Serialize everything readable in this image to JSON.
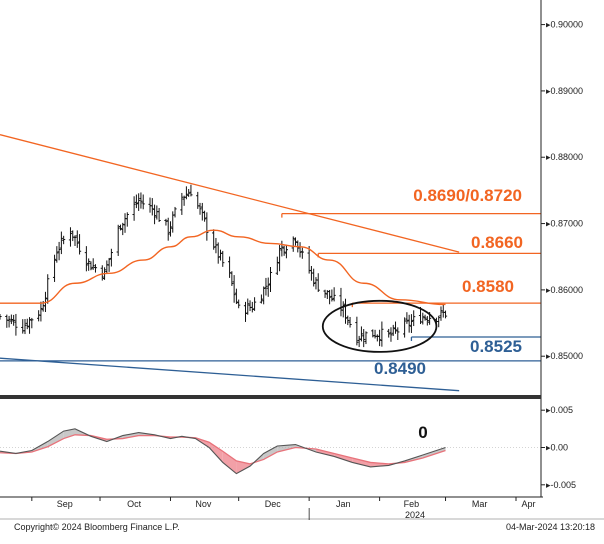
{
  "chart_data": [
    {
      "type": "ohlc",
      "panel": "price",
      "ylim": [
        0.844,
        0.9025
      ],
      "y_ticks": [
        "0.90000",
        "0.89000",
        "0.88000",
        "0.87000",
        "0.86000",
        "0.85000"
      ],
      "y_tick_values": [
        0.9,
        0.89,
        0.88,
        0.87,
        0.86,
        0.85
      ],
      "x_months": [
        "Sep",
        "Oct",
        "Nov",
        "Dec",
        "Jan",
        "Feb",
        "Mar",
        "Apr"
      ],
      "x_year_label": "2024",
      "close_keypoints": [
        [
          "2023-08-18",
          0.856
        ],
        [
          "2023-08-28",
          0.8545
        ],
        [
          "2023-09-05",
          0.857
        ],
        [
          "2023-09-12",
          0.866
        ],
        [
          "2023-09-18",
          0.869
        ],
        [
          "2023-09-26",
          0.864
        ],
        [
          "2023-10-03",
          0.8625
        ],
        [
          "2023-10-10",
          0.87
        ],
        [
          "2023-10-18",
          0.8735
        ],
        [
          "2023-10-25",
          0.872
        ],
        [
          "2023-10-31",
          0.869
        ],
        [
          "2023-11-06",
          0.874
        ],
        [
          "2023-11-10",
          0.875
        ],
        [
          "2023-11-15",
          0.871
        ],
        [
          "2023-11-21",
          0.866
        ],
        [
          "2023-11-27",
          0.862
        ],
        [
          "2023-12-01",
          0.857
        ],
        [
          "2023-12-07",
          0.8575
        ],
        [
          "2023-12-12",
          0.86
        ],
        [
          "2023-12-15",
          0.862
        ],
        [
          "2023-12-19",
          0.866
        ],
        [
          "2023-12-26",
          0.868
        ],
        [
          "2023-12-29",
          0.865
        ],
        [
          "2024-01-04",
          0.861
        ],
        [
          "2024-01-10",
          0.859
        ],
        [
          "2024-01-16",
          0.857
        ],
        [
          "2024-01-22",
          0.853
        ],
        [
          "2024-01-30",
          0.8535
        ],
        [
          "2024-02-05",
          0.853
        ],
        [
          "2024-02-12",
          0.8545
        ],
        [
          "2024-02-19",
          0.856
        ],
        [
          "2024-02-26",
          0.856
        ],
        [
          "2024-03-01",
          0.8565
        ]
      ],
      "moving_average": [
        [
          "2023-08-18",
          0.858
        ],
        [
          "2023-09-05",
          0.858
        ],
        [
          "2023-09-20",
          0.861
        ],
        [
          "2023-10-05",
          0.8625
        ],
        [
          "2023-10-20",
          0.8645
        ],
        [
          "2023-11-01",
          0.8665
        ],
        [
          "2023-11-10",
          0.868
        ],
        [
          "2023-11-20",
          0.869
        ],
        [
          "2023-12-01",
          0.868
        ],
        [
          "2023-12-15",
          0.867
        ],
        [
          "2023-12-28",
          0.8665
        ],
        [
          "2024-01-10",
          0.8645
        ],
        [
          "2024-01-25",
          0.861
        ],
        [
          "2024-02-10",
          0.8585
        ],
        [
          "2024-03-01",
          0.8578
        ]
      ],
      "level_lines": [
        {
          "label": "0.8690/0.8720",
          "value": 0.8715,
          "from": "2023-12-20",
          "color": "#f26522"
        },
        {
          "label": "0.8660",
          "value": 0.8655,
          "from": "2024-01-05",
          "color": "#f26522"
        },
        {
          "label": "0.8580",
          "value": 0.858,
          "from": "2024-01-20",
          "color": "#f26522"
        },
        {
          "label": "0.8525",
          "value": 0.8529,
          "from": "2024-02-15",
          "color": "#2e5f95"
        },
        {
          "label": "0.8490",
          "value": 0.8493,
          "from": "2023-08-18",
          "color": "#2e5f95"
        }
      ],
      "trendlines": [
        {
          "color": "#f26522",
          "points": [
            [
              "2023-08-18",
              0.8834
            ],
            [
              "2024-03-07",
              0.8657
            ]
          ]
        },
        {
          "color": "#2e5f95",
          "points": [
            [
              "2023-08-18",
              0.8497
            ],
            [
              "2024-03-07",
              0.8448
            ]
          ]
        }
      ],
      "ellipse": {
        "center": [
          "2024-02-01",
          0.8545
        ],
        "rx_days": 25,
        "ry": 0.00385
      }
    },
    {
      "type": "line",
      "panel": "oscillator",
      "ylim": [
        -0.0065,
        0.0065
      ],
      "y_ticks": [
        "0.005",
        "0.00",
        "-0.005"
      ],
      "y_tick_values": [
        0.005,
        0.0,
        -0.005
      ],
      "annotation": "0",
      "fast": [
        [
          "2023-08-18",
          -0.0005
        ],
        [
          "2023-08-25",
          -0.0008
        ],
        [
          "2023-09-01",
          -0.0004
        ],
        [
          "2023-09-08",
          0.0008
        ],
        [
          "2023-09-15",
          0.0022
        ],
        [
          "2023-09-20",
          0.0025
        ],
        [
          "2023-09-27",
          0.0015
        ],
        [
          "2023-10-04",
          0.0008
        ],
        [
          "2023-10-11",
          0.0016
        ],
        [
          "2023-10-18",
          0.002
        ],
        [
          "2023-10-25",
          0.0017
        ],
        [
          "2023-11-01",
          0.0012
        ],
        [
          "2023-11-06",
          0.0015
        ],
        [
          "2023-11-12",
          0.0012
        ],
        [
          "2023-11-18",
          0.0
        ],
        [
          "2023-11-24",
          -0.002
        ],
        [
          "2023-11-30",
          -0.0035
        ],
        [
          "2023-12-06",
          -0.0025
        ],
        [
          "2023-12-12",
          -0.0008
        ],
        [
          "2023-12-18",
          0.0002
        ],
        [
          "2023-12-26",
          0.0004
        ],
        [
          "2024-01-04",
          -0.0006
        ],
        [
          "2024-01-12",
          -0.0012
        ],
        [
          "2024-01-20",
          -0.002
        ],
        [
          "2024-01-28",
          -0.0026
        ],
        [
          "2024-02-05",
          -0.0024
        ],
        [
          "2024-02-12",
          -0.0018
        ],
        [
          "2024-02-20",
          -0.001
        ],
        [
          "2024-03-01",
          0.0
        ]
      ],
      "slow": [
        [
          "2023-08-18",
          -0.0007
        ],
        [
          "2023-08-25",
          -0.0008
        ],
        [
          "2023-09-01",
          -0.0006
        ],
        [
          "2023-09-08",
          0.0001
        ],
        [
          "2023-09-15",
          0.0012
        ],
        [
          "2023-09-20",
          0.0017
        ],
        [
          "2023-09-27",
          0.0016
        ],
        [
          "2023-10-04",
          0.0011
        ],
        [
          "2023-10-11",
          0.0012
        ],
        [
          "2023-10-18",
          0.0016
        ],
        [
          "2023-10-25",
          0.0016
        ],
        [
          "2023-11-01",
          0.0014
        ],
        [
          "2023-11-06",
          0.0014
        ],
        [
          "2023-11-12",
          0.0013
        ],
        [
          "2023-11-18",
          0.0007
        ],
        [
          "2023-11-24",
          -0.0005
        ],
        [
          "2023-11-30",
          -0.0018
        ],
        [
          "2023-12-06",
          -0.0022
        ],
        [
          "2023-12-12",
          -0.0016
        ],
        [
          "2023-12-18",
          -0.0006
        ],
        [
          "2023-12-26",
          0.0
        ],
        [
          "2024-01-04",
          -0.0002
        ],
        [
          "2024-01-12",
          -0.0008
        ],
        [
          "2024-01-20",
          -0.0014
        ],
        [
          "2024-01-28",
          -0.002
        ],
        [
          "2024-02-05",
          -0.0022
        ],
        [
          "2024-02-12",
          -0.002
        ],
        [
          "2024-02-20",
          -0.0014
        ],
        [
          "2024-03-01",
          -0.0004
        ]
      ],
      "colors": {
        "fast": "#555555",
        "slow": "#e8737b",
        "fill_pos": "#c8c8c8",
        "fill_neg": "#f2a0a7"
      }
    }
  ],
  "x_axis": {
    "start": "2023-08-18",
    "end": "2024-04-12"
  },
  "footer": {
    "copyright": "Copyright© 2024 Bloomberg Finance L.P.",
    "timestamp": "04-Mar-2024 13:20:18"
  },
  "colors": {
    "orange": "#f26522",
    "blue": "#2e5f95",
    "bars": "#111111"
  }
}
